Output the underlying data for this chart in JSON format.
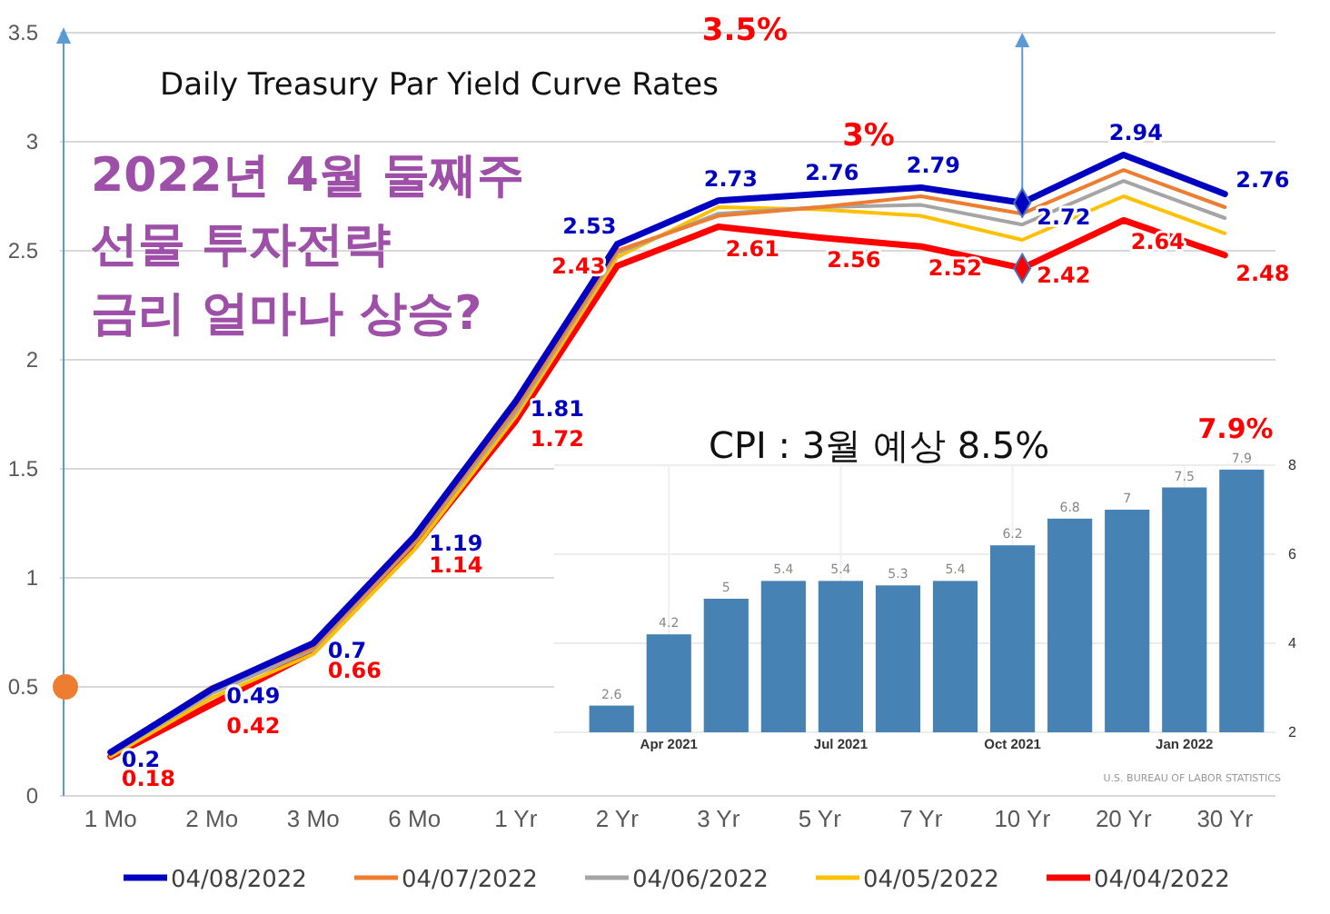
{
  "chart_data": [
    {
      "type": "line",
      "title": "Daily Treasury Par Yield Curve Rates",
      "categories": [
        "1 Mo",
        "2 Mo",
        "3 Mo",
        "6 Mo",
        "1 Yr",
        "2 Yr",
        "3 Yr",
        "5 Yr",
        "7 Yr",
        "10 Yr",
        "20 Yr",
        "30 Yr"
      ],
      "series": [
        {
          "name": "04/08/2022",
          "color": "#0000c0",
          "values": [
            0.2,
            0.49,
            0.7,
            1.19,
            1.81,
            2.53,
            2.73,
            2.76,
            2.79,
            2.72,
            2.94,
            2.76
          ],
          "value_labels": [
            "0.2",
            "0.49",
            "0.7",
            "1.19",
            "1.81",
            "2.53",
            "2.73",
            "2.76",
            "2.79",
            "2.72",
            "2.94",
            "2.76"
          ]
        },
        {
          "name": "04/07/2022",
          "color": "#ed7d31",
          "values": [
            0.2,
            0.5,
            0.68,
            1.17,
            1.78,
            2.5,
            2.66,
            2.7,
            2.75,
            2.67,
            2.87,
            2.7
          ]
        },
        {
          "name": "04/06/2022",
          "color": "#a5a5a5",
          "values": [
            0.19,
            0.47,
            0.67,
            1.16,
            1.76,
            2.49,
            2.67,
            2.7,
            2.71,
            2.62,
            2.82,
            2.65
          ]
        },
        {
          "name": "04/05/2022",
          "color": "#ffc000",
          "values": [
            0.18,
            0.45,
            0.65,
            1.13,
            1.74,
            2.47,
            2.7,
            2.69,
            2.66,
            2.55,
            2.75,
            2.58
          ]
        },
        {
          "name": "04/04/2022",
          "color": "#ff0000",
          "values": [
            0.18,
            0.42,
            0.66,
            1.14,
            1.72,
            2.43,
            2.61,
            2.56,
            2.52,
            2.42,
            2.64,
            2.48
          ],
          "value_labels": [
            "0.18",
            "0.42",
            "0.66",
            "1.14",
            "1.72",
            "2.43",
            "2.61",
            "2.56",
            "2.52",
            "2.42",
            "2.64",
            "2.48"
          ]
        }
      ],
      "ylim": [
        0,
        3.5
      ],
      "yticks": [
        0,
        0.5,
        1,
        1.5,
        2,
        2.5,
        3,
        3.5
      ],
      "grid": "y",
      "legend": "bottom",
      "annotations": [
        "3.5%",
        "3%",
        "2022년 4월 둘째주",
        "선물 투자전략",
        "금리 얼마나 상승?"
      ]
    },
    {
      "type": "bar",
      "title": "CPI : 3월 예상 8.5%",
      "categories": [
        null,
        "Apr 2021",
        null,
        null,
        "Jul 2021",
        null,
        null,
        "Oct 2021",
        null,
        null,
        "Jan 2022",
        null
      ],
      "values": [
        2.6,
        4.2,
        5,
        5.4,
        5.4,
        5.3,
        5.4,
        6.2,
        6.8,
        7,
        7.5,
        7.9
      ],
      "color": "#4682b4",
      "ylim": [
        2,
        8
      ],
      "yticks": [
        2,
        4,
        6,
        8
      ],
      "grid": true,
      "data_labels": true,
      "annotations": [
        "7.9%",
        "U.S. BUREAU OF LABOR STATISTICS"
      ]
    }
  ]
}
